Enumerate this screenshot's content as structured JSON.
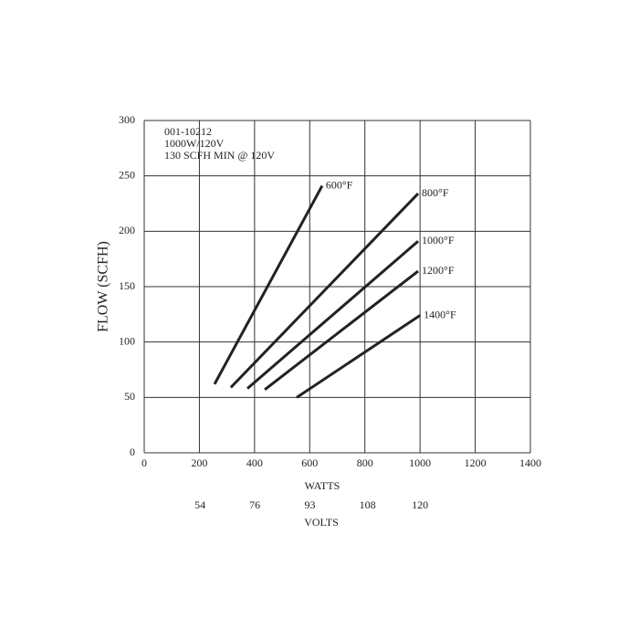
{
  "chart_data": {
    "type": "line",
    "annotations": [
      "001-10212",
      "1000W/120V",
      "130 SCFH MIN @ 120V"
    ],
    "xlabel": "WATTS",
    "ylabel": "FLOW (SCFH)",
    "x2label": "VOLTS",
    "xlim": [
      0,
      1400
    ],
    "xticks": [
      0,
      200,
      400,
      600,
      800,
      1000,
      1200,
      1400
    ],
    "ylim": [
      0,
      300
    ],
    "yticks": [
      0,
      50,
      100,
      150,
      200,
      250,
      300
    ],
    "x2lim": [
      0,
      142
    ],
    "x2scale": "square",
    "x2ticks": [
      54,
      76,
      93,
      108,
      120
    ],
    "grid": true,
    "series": [
      {
        "name": "600°F",
        "color": "#222222",
        "x": [
          255,
          645
        ],
        "values": [
          62,
          241
        ]
      },
      {
        "name": "800°F",
        "color": "#222222",
        "x": [
          314,
          993
        ],
        "values": [
          59,
          234
        ]
      },
      {
        "name": "1000°F",
        "color": "#222222",
        "x": [
          374,
          993
        ],
        "values": [
          58,
          191
        ]
      },
      {
        "name": "1200°F",
        "color": "#222222",
        "x": [
          437,
          993
        ],
        "values": [
          57,
          164
        ]
      },
      {
        "name": "1400°F",
        "color": "#222222",
        "x": [
          553,
          1000
        ],
        "values": [
          50,
          124
        ]
      }
    ]
  }
}
